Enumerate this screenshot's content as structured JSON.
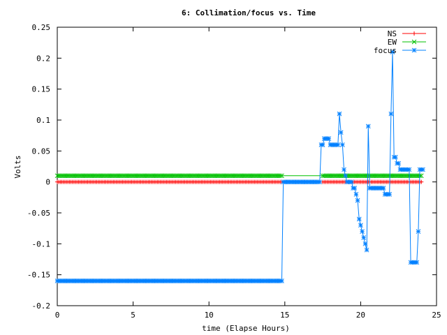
{
  "chart_data": {
    "type": "line",
    "title": "6: Collimation/focus vs. Time",
    "xlabel": "time (Elapse Hours)",
    "ylabel": "Volts",
    "xlim": [
      0,
      25
    ],
    "ylim": [
      -0.2,
      0.25
    ],
    "x_ticks": [
      0,
      5,
      10,
      15,
      20,
      25
    ],
    "x_tick_labels": [
      "0",
      "5",
      "10",
      "15",
      "20",
      "25"
    ],
    "y_ticks": [
      -0.2,
      -0.15,
      -0.1,
      -0.05,
      0,
      0.05,
      0.1,
      0.15,
      0.2,
      0.25
    ],
    "y_tick_labels": [
      "-0.2",
      "-0.15",
      "-0.1",
      "-0.05",
      "0",
      "0.05",
      "0.1",
      "0.15",
      "0.2",
      "0.25"
    ],
    "grid": false,
    "legend_position": "top-right",
    "series": [
      {
        "name": "NS",
        "color": "#ff0000",
        "marker": "plus",
        "segments": [
          {
            "x_start": 0,
            "x_end": 14.8,
            "step": 0.1,
            "y": 0
          },
          {
            "x_start": 17.5,
            "x_end": 24,
            "step": 0.1,
            "y": 0
          }
        ],
        "points": []
      },
      {
        "name": "EW",
        "color": "#00c000",
        "marker": "cross",
        "segments": [
          {
            "x_start": 0,
            "x_end": 14.8,
            "step": 0.1,
            "y": 0.01
          },
          {
            "x_start": 17.5,
            "x_end": 24,
            "step": 0.1,
            "y": 0.01
          }
        ],
        "points": []
      },
      {
        "name": "focus",
        "color": "#0080ff",
        "marker": "star",
        "segments": [
          {
            "x_start": 0,
            "x_end": 14.8,
            "step": 0.1,
            "y": -0.16
          },
          {
            "x_start": 14.9,
            "x_end": 17.3,
            "step": 0.1,
            "y": 0
          }
        ],
        "points": [
          [
            17.4,
            0.06
          ],
          [
            17.5,
            0.06
          ],
          [
            17.6,
            0.07
          ],
          [
            17.7,
            0.07
          ],
          [
            17.8,
            0.07
          ],
          [
            17.9,
            0.07
          ],
          [
            18.0,
            0.06
          ],
          [
            18.1,
            0.06
          ],
          [
            18.2,
            0.06
          ],
          [
            18.3,
            0.06
          ],
          [
            18.4,
            0.06
          ],
          [
            18.5,
            0.06
          ],
          [
            18.6,
            0.11
          ],
          [
            18.7,
            0.08
          ],
          [
            18.8,
            0.06
          ],
          [
            18.9,
            0.02
          ],
          [
            19.0,
            0.01
          ],
          [
            19.1,
            0.0
          ],
          [
            19.2,
            0.0
          ],
          [
            19.3,
            0.0
          ],
          [
            19.4,
            0.0
          ],
          [
            19.5,
            -0.01
          ],
          [
            19.6,
            -0.01
          ],
          [
            19.7,
            -0.02
          ],
          [
            19.8,
            -0.03
          ],
          [
            19.9,
            -0.06
          ],
          [
            20.0,
            -0.07
          ],
          [
            20.1,
            -0.08
          ],
          [
            20.2,
            -0.09
          ],
          [
            20.3,
            -0.1
          ],
          [
            20.4,
            -0.11
          ],
          [
            20.5,
            0.09
          ],
          [
            20.6,
            -0.01
          ],
          [
            20.7,
            -0.01
          ],
          [
            20.8,
            -0.01
          ],
          [
            20.9,
            -0.01
          ],
          [
            21.0,
            -0.01
          ],
          [
            21.1,
            -0.01
          ],
          [
            21.2,
            -0.01
          ],
          [
            21.3,
            -0.01
          ],
          [
            21.4,
            -0.01
          ],
          [
            21.5,
            -0.01
          ],
          [
            21.6,
            -0.02
          ],
          [
            21.7,
            -0.02
          ],
          [
            21.8,
            -0.02
          ],
          [
            21.9,
            -0.02
          ],
          [
            22.0,
            0.11
          ],
          [
            22.1,
            0.21
          ],
          [
            22.2,
            0.04
          ],
          [
            22.3,
            0.04
          ],
          [
            22.4,
            0.03
          ],
          [
            22.5,
            0.03
          ],
          [
            22.6,
            0.02
          ],
          [
            22.7,
            0.02
          ],
          [
            22.8,
            0.02
          ],
          [
            22.9,
            0.02
          ],
          [
            23.0,
            0.02
          ],
          [
            23.1,
            0.02
          ],
          [
            23.2,
            0.02
          ],
          [
            23.3,
            -0.13
          ],
          [
            23.4,
            -0.13
          ],
          [
            23.5,
            -0.13
          ],
          [
            23.6,
            -0.13
          ],
          [
            23.7,
            -0.13
          ],
          [
            23.8,
            -0.08
          ],
          [
            23.9,
            0.02
          ],
          [
            24.0,
            0.02
          ],
          [
            24.1,
            0.02
          ]
        ]
      }
    ]
  }
}
